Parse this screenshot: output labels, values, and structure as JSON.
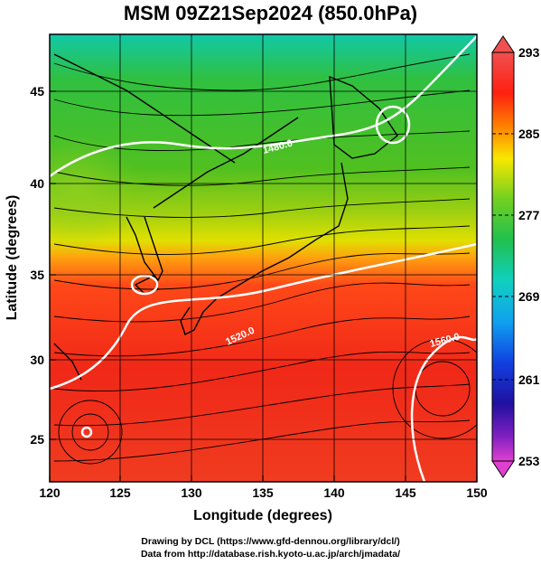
{
  "title": "MSM 09Z21Sep2024 (850.0hPa)",
  "axes": {
    "xlabel": "Longitude (degrees)",
    "ylabel": "Latitude  (degrees)",
    "x_ticks": [
      "120",
      "125",
      "130",
      "135",
      "140",
      "145",
      "150"
    ],
    "y_ticks": [
      "25",
      "30",
      "35",
      "40",
      "45"
    ]
  },
  "colorbar": {
    "ticks": [
      "293",
      "285",
      "277",
      "269",
      "261",
      "253"
    ],
    "colors": [
      "#d040c0",
      "#7020c0",
      "#1020c0",
      "#1080ff",
      "#10c0d0",
      "#20d8a0",
      "#20c020",
      "#80d020",
      "#f0f000",
      "#ffa000",
      "#ff5010",
      "#f01010",
      "#f85050"
    ]
  },
  "contour_labels": [
    "1480.0",
    "1520.0",
    "1560.0"
  ],
  "credits": {
    "line1": "Drawing by DCL (https://www.gfd-dennou.org/library/dcl/)",
    "line2": "Data from http://database.rish.kyoto-u.ac.jp/arch/jmadata/"
  }
}
